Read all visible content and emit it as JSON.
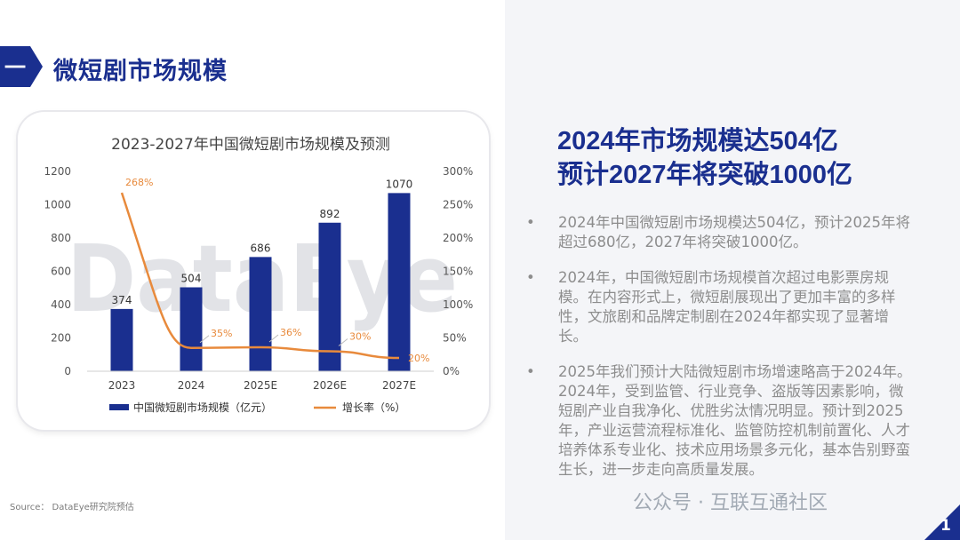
{
  "section": {
    "number": "一",
    "title": "微短剧市场规模"
  },
  "headline": {
    "line1": "2024年市场规模达504亿",
    "line2": "预计2027年将突破1000亿"
  },
  "bullets": [
    "2024年中国微短剧市场规模达504亿，预计2025年将超过680亿，2027年将突破1000亿。",
    "2024年，中国微短剧市场规模首次超过电影票房规模。在内容形式上，微短剧展现出了更加丰富的多样性，文旅剧和品牌定制剧在2024年都实现了显著增长。",
    "2025年我们预计大陆微短剧市场增速略高于2024年。2024年，受到监管、行业竞争、盗版等因素影响，微短剧产业自我净化、优胜劣汰情况明显。预计到2025年，产业运营流程标准化、监管防控机制前置化、人才培养体系专业化、技术应用场景多元化，基本告别野蛮生长，进一步走向高质量发展。"
  ],
  "bullet_glyph": "•",
  "source": "Source：  DataEye研究院预估",
  "watermark_chart": "DataEye",
  "watermark_social": "公众号 · 互联互通社区",
  "page_number": "1",
  "colors": {
    "brand": "#1a2f8f",
    "bar": "#1a2f8f",
    "line": "#e88a3c",
    "text_gray": "#8d8d8d"
  },
  "chart_data": {
    "type": "bar",
    "title": "2023-2027年中国微短剧市场规模及预测",
    "categories": [
      "2023",
      "2024",
      "2025E",
      "2026E",
      "2027E"
    ],
    "series": [
      {
        "name": "中国微短剧市场规模（亿元）",
        "type": "bar",
        "axis": "left",
        "values": [
          374,
          504,
          686,
          892,
          1070
        ],
        "labels": [
          "374",
          "504",
          "686",
          "892",
          "1070"
        ]
      },
      {
        "name": "增长率（%）",
        "type": "line",
        "axis": "right",
        "values": [
          268,
          35,
          36,
          30,
          20
        ],
        "labels": [
          "268%",
          "35%",
          "36%",
          "30%",
          "20%"
        ]
      }
    ],
    "ylim": [
      0,
      1200
    ],
    "yticks": [
      "0",
      "200",
      "400",
      "600",
      "800",
      "1000",
      "1200"
    ],
    "y2lim": [
      0,
      300
    ],
    "y2ticks": [
      "0%",
      "50%",
      "100%",
      "150%",
      "200%",
      "250%",
      "300%"
    ],
    "legend_position": "bottom"
  }
}
